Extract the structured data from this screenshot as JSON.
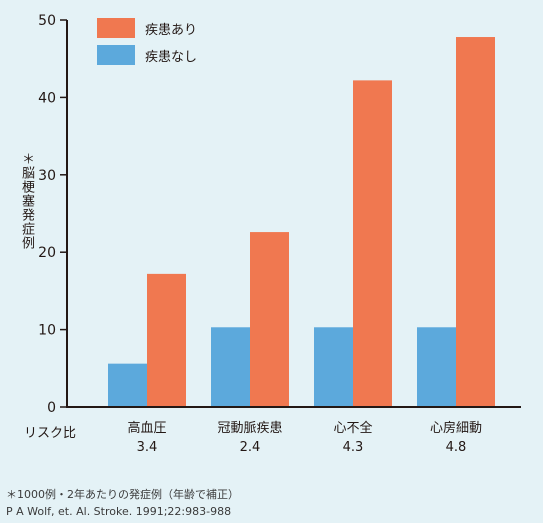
{
  "chart_data": {
    "type": "bar",
    "categories": [
      "高血圧",
      "冠動脈疾患",
      "心不全",
      "心房細動"
    ],
    "risk_row_label": "リスク比",
    "risk_ratios": [
      "3.4",
      "2.4",
      "4.3",
      "4.8"
    ],
    "series": [
      {
        "name": "疾患あり",
        "color": "#f07850",
        "values": [
          17.2,
          22.6,
          42.2,
          47.8
        ]
      },
      {
        "name": "疾患なし",
        "color": "#5ca9dc",
        "values": [
          5.6,
          10.3,
          10.3,
          10.3
        ]
      }
    ],
    "ylabel": "＊脳梗塞発症例",
    "ylim": [
      0,
      50
    ],
    "yticks": [
      0,
      10,
      20,
      30,
      40,
      50
    ],
    "grid": false,
    "legend_position": "top-left"
  },
  "footnote": {
    "line1": "＊1000例・2年あたりの発症例（年齢で補正）",
    "line2": "P A Wolf, et. Al. Stroke. 1991;22:983-988"
  }
}
